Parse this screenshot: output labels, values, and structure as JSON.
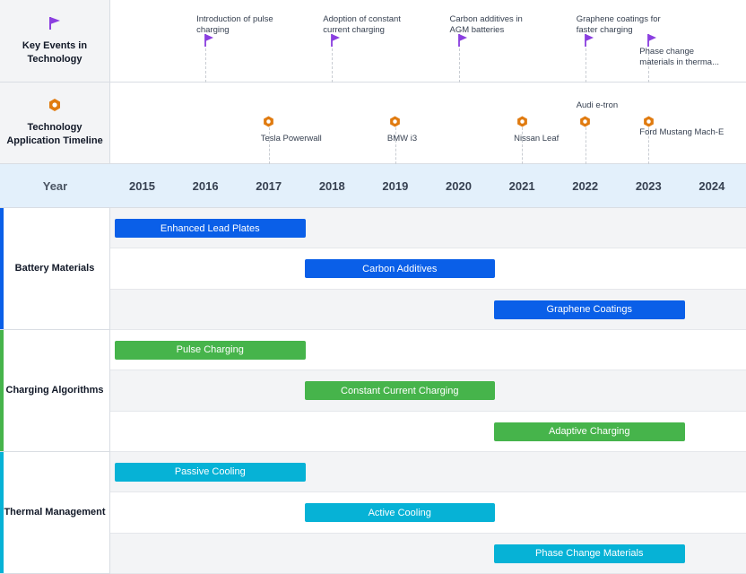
{
  "colors": {
    "event_flag": "#8b3fe0",
    "application_hex": "#e07b10",
    "battery": "#0a5fe8",
    "charging": "#46b44b",
    "thermal": "#06b2d6"
  },
  "bands": {
    "events": {
      "label": "Key Events in Technology",
      "icon": "flag-icon"
    },
    "applications": {
      "label": "Technology Application Timeline",
      "icon": "hexagon-icon"
    }
  },
  "year_header": "Year",
  "chart_data": {
    "type": "gantt-timeline",
    "years": [
      "2015",
      "2016",
      "2017",
      "2018",
      "2019",
      "2020",
      "2021",
      "2022",
      "2023",
      "2024"
    ],
    "events": [
      {
        "year": 2016,
        "label": "Introduction of pulse charging"
      },
      {
        "year": 2018,
        "label": "Adoption of constant current charging"
      },
      {
        "year": 2020,
        "label": "Carbon additives in AGM batteries"
      },
      {
        "year": 2022,
        "label": "Graphene coatings for faster charging"
      },
      {
        "year": 2023,
        "label": "Phase change materials in therma..."
      }
    ],
    "applications": [
      {
        "year": 2017,
        "label": "Tesla Powerwall"
      },
      {
        "year": 2019,
        "label": "BMW i3"
      },
      {
        "year": 2021,
        "label": "Nissan Leaf"
      },
      {
        "year": 2022,
        "label": "Audi e-tron"
      },
      {
        "year": 2023,
        "label": "Ford Mustang Mach-E"
      }
    ],
    "groups": [
      {
        "name": "Battery Materials",
        "color_key": "battery",
        "tasks": [
          {
            "name": "Enhanced Lead Plates",
            "start": 2015,
            "end": 2018
          },
          {
            "name": "Carbon Additives",
            "start": 2018,
            "end": 2021
          },
          {
            "name": "Graphene Coatings",
            "start": 2021,
            "end": 2024
          }
        ]
      },
      {
        "name": "Charging Algorithms",
        "color_key": "charging",
        "tasks": [
          {
            "name": "Pulse Charging",
            "start": 2015,
            "end": 2018
          },
          {
            "name": "Constant Current Charging",
            "start": 2018,
            "end": 2021
          },
          {
            "name": "Adaptive Charging",
            "start": 2021,
            "end": 2024
          }
        ]
      },
      {
        "name": "Thermal Management",
        "color_key": "thermal",
        "tasks": [
          {
            "name": "Passive Cooling",
            "start": 2015,
            "end": 2018
          },
          {
            "name": "Active Cooling",
            "start": 2018,
            "end": 2021
          },
          {
            "name": "Phase Change Materials",
            "start": 2021,
            "end": 2024
          }
        ]
      }
    ]
  }
}
